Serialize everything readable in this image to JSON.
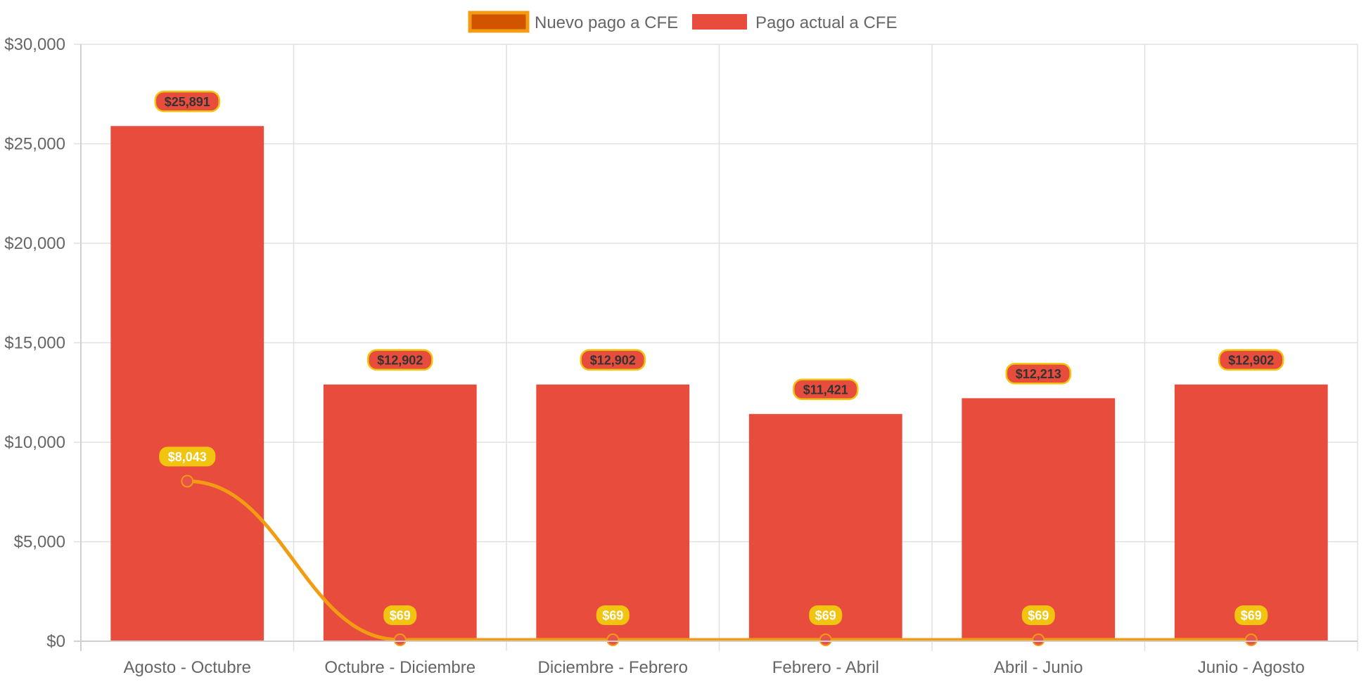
{
  "chart_data": {
    "type": "bar",
    "title": "",
    "xlabel": "",
    "ylabel": "",
    "ylim": [
      0,
      30000
    ],
    "yticks": [
      0,
      5000,
      10000,
      15000,
      20000,
      25000,
      30000
    ],
    "ytick_labels": [
      "$0",
      "$5,000",
      "$10,000",
      "$15,000",
      "$20,000",
      "$25,000",
      "$30,000"
    ],
    "grid": true,
    "legend_position": "top-center",
    "categories": [
      "Agosto - Octubre",
      "Octubre - Diciembre",
      "Diciembre - Febrero",
      "Febrero - Abril",
      "Abril - Junio",
      "Junio - Agosto"
    ],
    "series": [
      {
        "name": "Nuevo pago a CFE",
        "type": "line",
        "values": [
          8043,
          69,
          69,
          69,
          69,
          69
        ],
        "labels": [
          "$8,043",
          "$69",
          "$69",
          "$69",
          "$69",
          "$69"
        ],
        "color": "#f39c12",
        "legend_fill": "#d35400",
        "point_color": "#e8524a",
        "label_bg": "#f1c40f",
        "label_text": "#ffffff"
      },
      {
        "name": "Pago actual a CFE",
        "type": "bar",
        "values": [
          25891,
          12902,
          12902,
          11421,
          12213,
          12902
        ],
        "labels": [
          "$25,891",
          "$12,902",
          "$12,902",
          "$11,421",
          "$12,213",
          "$12,902"
        ],
        "color": "#e74c3c",
        "label_bg": "#e74c3c",
        "label_border": "#f1c40f",
        "label_text": "#333333"
      }
    ]
  }
}
